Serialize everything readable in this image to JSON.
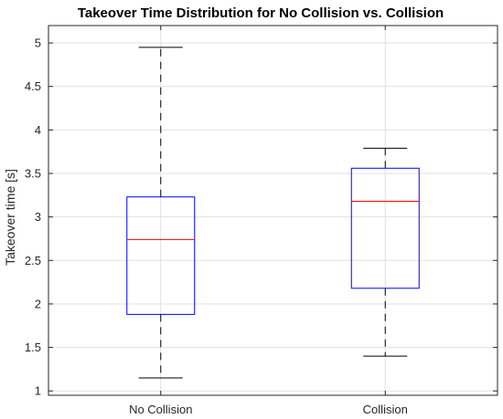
{
  "chart_data": {
    "type": "box",
    "title": "Takeover Time Distribution for No Collision vs. Collision",
    "xlabel": "",
    "ylabel": "Takeover time [s]",
    "ylim": [
      0.95,
      5.2
    ],
    "yticks": [
      "1",
      "1.5",
      "2",
      "2.5",
      "3",
      "3.5",
      "4",
      "4.5",
      "5"
    ],
    "grid": true,
    "categories": [
      "No Collision",
      "Collision"
    ],
    "boxes": [
      {
        "category": "No Collision",
        "whisker_low": 1.15,
        "q1": 1.88,
        "median": 2.74,
        "q3": 3.23,
        "whisker_high": 4.95
      },
      {
        "category": "Collision",
        "whisker_low": 1.4,
        "q1": 2.18,
        "median": 3.18,
        "q3": 3.56,
        "whisker_high": 3.79
      }
    ],
    "colors": {
      "box": "#0000ff",
      "median": "#ff0000",
      "whisker": "#000000",
      "grid": "#e0e0e0",
      "axis": "#262626"
    }
  }
}
